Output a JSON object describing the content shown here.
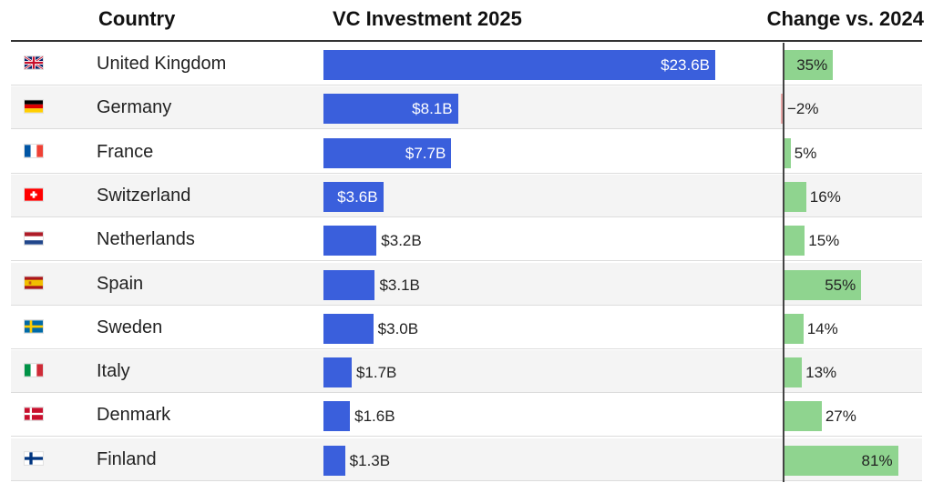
{
  "header": {
    "country": "Country",
    "vc": "VC Investment 2025",
    "change": "Change vs. 2024"
  },
  "chart_data": {
    "type": "table",
    "columns": [
      "Country",
      "VC Investment 2025",
      "Change vs. 2024"
    ],
    "rows": [
      {
        "country": "United Kingdom",
        "flag": "uk-flag-icon",
        "vc": 23.6,
        "vc_label": "$23.6B",
        "change": 35,
        "change_label": "35%"
      },
      {
        "country": "Germany",
        "flag": "germany-flag-icon",
        "vc": 8.1,
        "vc_label": "$8.1B",
        "change": -2,
        "change_label": "−2%"
      },
      {
        "country": "France",
        "flag": "france-flag-icon",
        "vc": 7.7,
        "vc_label": "$7.7B",
        "change": 5,
        "change_label": "5%"
      },
      {
        "country": "Switzerland",
        "flag": "switzerland-flag-icon",
        "vc": 3.6,
        "vc_label": "$3.6B",
        "change": 16,
        "change_label": "16%"
      },
      {
        "country": "Netherlands",
        "flag": "netherlands-flag-icon",
        "vc": 3.2,
        "vc_label": "$3.2B",
        "change": 15,
        "change_label": "15%"
      },
      {
        "country": "Spain",
        "flag": "spain-flag-icon",
        "vc": 3.1,
        "vc_label": "$3.1B",
        "change": 55,
        "change_label": "55%"
      },
      {
        "country": "Sweden",
        "flag": "sweden-flag-icon",
        "vc": 3.0,
        "vc_label": "$3.0B",
        "change": 14,
        "change_label": "14%"
      },
      {
        "country": "Italy",
        "flag": "italy-flag-icon",
        "vc": 1.7,
        "vc_label": "$1.7B",
        "change": 13,
        "change_label": "13%"
      },
      {
        "country": "Denmark",
        "flag": "denmark-flag-icon",
        "vc": 1.6,
        "vc_label": "$1.6B",
        "change": 27,
        "change_label": "27%"
      },
      {
        "country": "Finland",
        "flag": "finland-flag-icon",
        "vc": 1.3,
        "vc_label": "$1.3B",
        "change": 81,
        "change_label": "81%"
      }
    ],
    "colors": {
      "vc_bar": "#3a5fdc",
      "change_positive": "#8fd48f",
      "change_negative": "#e7a6a6"
    }
  }
}
